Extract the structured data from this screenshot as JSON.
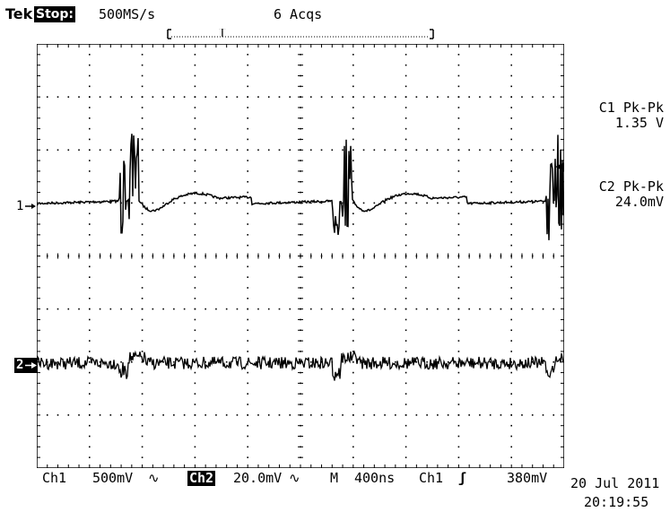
{
  "header": {
    "brand": "Tek",
    "state": "Stop:",
    "sample_rate": "500MS/s",
    "acquisitions": "6 Acqs",
    "trigger_marker": "T"
  },
  "channels": {
    "ch1_marker": "1",
    "ch2_marker": "2"
  },
  "measurements": [
    {
      "label": "C1 Pk-Pk",
      "value": "1.35 V"
    },
    {
      "label": "C2 Pk-Pk",
      "value": "24.0mV"
    }
  ],
  "status_bar": {
    "ch1_label": "Ch1",
    "ch1_scale": "500mV",
    "ch1_coupling": "∿",
    "ch2_label": "Ch2",
    "ch2_scale": "20.0mV",
    "ch2_coupling": "∿",
    "timebase_label": "M",
    "timebase": "400ns",
    "trigger_source": "Ch1",
    "trigger_slope": "ʃ",
    "trigger_level": "380mV"
  },
  "timestamp": {
    "date": "20 Jul 2011",
    "time": "20:19:55"
  },
  "colors": {
    "trace": "#000000",
    "grid": "#000000",
    "background": "#ffffff"
  }
}
